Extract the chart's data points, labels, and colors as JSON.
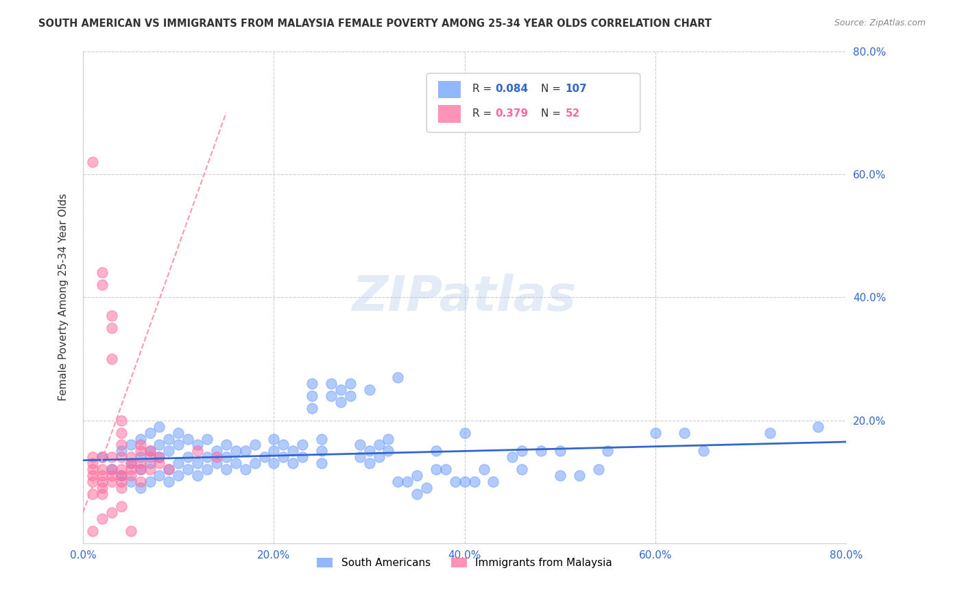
{
  "title": "SOUTH AMERICAN VS IMMIGRANTS FROM MALAYSIA FEMALE POVERTY AMONG 25-34 YEAR OLDS CORRELATION CHART",
  "source": "Source: ZipAtlas.com",
  "xlabel": "",
  "ylabel": "Female Poverty Among 25-34 Year Olds",
  "xlim": [
    0.0,
    0.8
  ],
  "ylim": [
    0.0,
    0.8
  ],
  "xtick_labels": [
    "0.0%",
    "20.0%",
    "40.0%",
    "60.0%",
    "80.0%"
  ],
  "xtick_vals": [
    0.0,
    0.2,
    0.4,
    0.6,
    0.8
  ],
  "ytick_labels": [
    "80.0%",
    "60.0%",
    "40.0%",
    "20.0%"
  ],
  "ytick_vals": [
    0.8,
    0.6,
    0.4,
    0.2
  ],
  "right_ytick_labels": [
    "80.0%",
    "60.0%",
    "40.0%",
    "20.0%"
  ],
  "right_ytick_vals": [
    0.8,
    0.6,
    0.4,
    0.2
  ],
  "blue_color": "#6699ff",
  "pink_color": "#ff6699",
  "blue_line_color": "#3366cc",
  "pink_line_color": "#ff99aa",
  "grid_color": "#cccccc",
  "watermark": "ZIPatlas",
  "legend_R_blue": "0.084",
  "legend_N_blue": "107",
  "legend_R_pink": "0.379",
  "legend_N_pink": "52",
  "blue_scatter_x": [
    0.02,
    0.03,
    0.04,
    0.04,
    0.05,
    0.05,
    0.05,
    0.06,
    0.06,
    0.06,
    0.06,
    0.07,
    0.07,
    0.07,
    0.07,
    0.08,
    0.08,
    0.08,
    0.08,
    0.09,
    0.09,
    0.09,
    0.09,
    0.1,
    0.1,
    0.1,
    0.1,
    0.11,
    0.11,
    0.11,
    0.12,
    0.12,
    0.12,
    0.13,
    0.13,
    0.13,
    0.14,
    0.14,
    0.15,
    0.15,
    0.15,
    0.16,
    0.16,
    0.17,
    0.17,
    0.18,
    0.18,
    0.19,
    0.2,
    0.2,
    0.2,
    0.21,
    0.21,
    0.22,
    0.22,
    0.23,
    0.23,
    0.24,
    0.24,
    0.24,
    0.25,
    0.25,
    0.25,
    0.26,
    0.26,
    0.27,
    0.27,
    0.28,
    0.28,
    0.29,
    0.29,
    0.3,
    0.3,
    0.31,
    0.31,
    0.32,
    0.32,
    0.33,
    0.34,
    0.35,
    0.35,
    0.36,
    0.37,
    0.38,
    0.39,
    0.4,
    0.41,
    0.42,
    0.43,
    0.45,
    0.46,
    0.48,
    0.5,
    0.52,
    0.54,
    0.6,
    0.63,
    0.65,
    0.72,
    0.77,
    0.3,
    0.33,
    0.37,
    0.4,
    0.46,
    0.5,
    0.55
  ],
  "blue_scatter_y": [
    0.14,
    0.12,
    0.11,
    0.15,
    0.1,
    0.13,
    0.16,
    0.09,
    0.12,
    0.14,
    0.17,
    0.1,
    0.13,
    0.15,
    0.18,
    0.11,
    0.14,
    0.16,
    0.19,
    0.1,
    0.12,
    0.15,
    0.17,
    0.11,
    0.13,
    0.16,
    0.18,
    0.12,
    0.14,
    0.17,
    0.11,
    0.13,
    0.16,
    0.12,
    0.14,
    0.17,
    0.13,
    0.15,
    0.12,
    0.14,
    0.16,
    0.13,
    0.15,
    0.12,
    0.15,
    0.13,
    0.16,
    0.14,
    0.13,
    0.15,
    0.17,
    0.14,
    0.16,
    0.13,
    0.15,
    0.14,
    0.16,
    0.22,
    0.24,
    0.26,
    0.13,
    0.15,
    0.17,
    0.24,
    0.26,
    0.23,
    0.25,
    0.24,
    0.26,
    0.14,
    0.16,
    0.13,
    0.15,
    0.14,
    0.16,
    0.15,
    0.17,
    0.1,
    0.1,
    0.08,
    0.11,
    0.09,
    0.12,
    0.12,
    0.1,
    0.1,
    0.1,
    0.12,
    0.1,
    0.14,
    0.12,
    0.15,
    0.11,
    0.11,
    0.12,
    0.18,
    0.18,
    0.15,
    0.18,
    0.19,
    0.25,
    0.27,
    0.15,
    0.18,
    0.15,
    0.15,
    0.15
  ],
  "pink_scatter_x": [
    0.01,
    0.01,
    0.01,
    0.01,
    0.01,
    0.01,
    0.01,
    0.01,
    0.02,
    0.02,
    0.02,
    0.02,
    0.02,
    0.02,
    0.02,
    0.02,
    0.02,
    0.03,
    0.03,
    0.03,
    0.03,
    0.03,
    0.03,
    0.03,
    0.03,
    0.04,
    0.04,
    0.04,
    0.04,
    0.04,
    0.04,
    0.04,
    0.04,
    0.04,
    0.05,
    0.05,
    0.05,
    0.05,
    0.05,
    0.06,
    0.06,
    0.06,
    0.06,
    0.06,
    0.07,
    0.07,
    0.07,
    0.08,
    0.08,
    0.09,
    0.12,
    0.14
  ],
  "pink_scatter_y": [
    0.62,
    0.14,
    0.13,
    0.12,
    0.11,
    0.1,
    0.08,
    0.02,
    0.44,
    0.42,
    0.14,
    0.12,
    0.11,
    0.1,
    0.09,
    0.08,
    0.04,
    0.37,
    0.35,
    0.3,
    0.14,
    0.12,
    0.11,
    0.1,
    0.05,
    0.2,
    0.18,
    0.16,
    0.14,
    0.12,
    0.11,
    0.1,
    0.09,
    0.06,
    0.14,
    0.13,
    0.12,
    0.11,
    0.02,
    0.16,
    0.15,
    0.13,
    0.12,
    0.1,
    0.15,
    0.14,
    0.12,
    0.14,
    0.13,
    0.12,
    0.15,
    0.14
  ],
  "blue_trendline_x": [
    0.0,
    0.8
  ],
  "blue_trendline_y": [
    0.135,
    0.165
  ],
  "pink_trendline_x": [
    0.0,
    0.15
  ],
  "pink_trendline_y": [
    0.05,
    0.7
  ]
}
